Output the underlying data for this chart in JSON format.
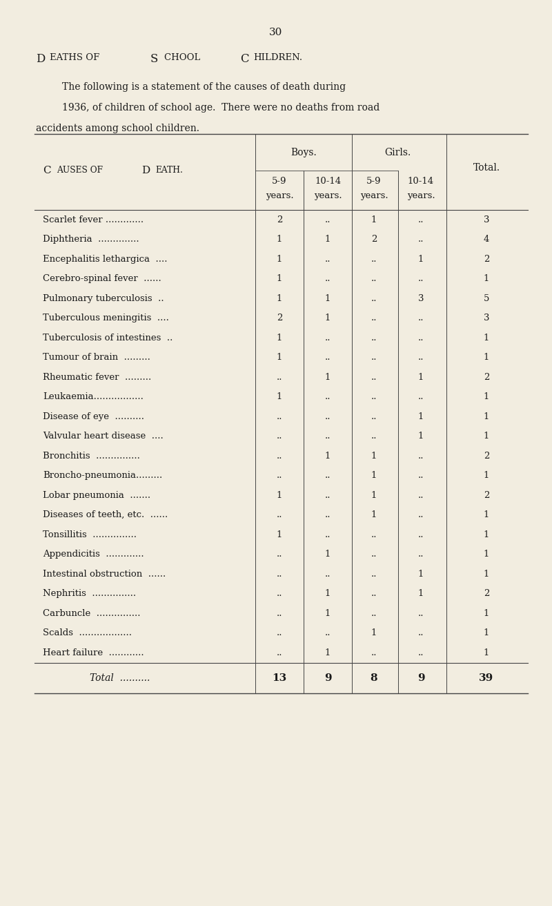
{
  "page_number": "30",
  "title_parts": [
    {
      "text": "D",
      "small_cap": false
    },
    {
      "text": "EATHS OF ",
      "small_cap": true
    },
    {
      "text": "S",
      "small_cap": false
    },
    {
      "text": "CHOOL ",
      "small_cap": true
    },
    {
      "text": "C",
      "small_cap": false
    },
    {
      "text": "HILDREN",
      "small_cap": true
    }
  ],
  "title_display": "Deaths of School Children.",
  "intro_line1": "The following is a statement of the causes of death during",
  "intro_line2": "1936, of children of school age.  There were no deaths from road",
  "intro_line3": "accidents among school children.",
  "col0_header": "Causes of Death.",
  "header_boys": "Boys.",
  "header_girls": "Girls.",
  "header_total": "Total.",
  "subheaders": [
    "5-9",
    "10-14",
    "5-9",
    "10-14"
  ],
  "subheaders2": [
    "years.",
    "years.",
    "years.",
    "years."
  ],
  "rows": [
    {
      "cause": "Scarlet fever .............",
      "b59": "2",
      "b1014": "..",
      "g59": "1",
      "g1014": "..",
      "total": "3"
    },
    {
      "cause": "Diphtheria  ..............",
      "b59": "1",
      "b1014": "1",
      "g59": "2",
      "g1014": "..",
      "total": "4"
    },
    {
      "cause": "Encephalitis lethargica  ....",
      "b59": "1",
      "b1014": "..",
      "g59": "..",
      "g1014": "1",
      "total": "2"
    },
    {
      "cause": "Cerebro-spinal fever  ......",
      "b59": "1",
      "b1014": "..",
      "g59": "..",
      "g1014": "..",
      "total": "1"
    },
    {
      "cause": "Pulmonary tuberculosis  ..",
      "b59": "1",
      "b1014": "1",
      "g59": "..",
      "g1014": "3",
      "total": "5"
    },
    {
      "cause": "Tuberculous meningitis  ....",
      "b59": "2",
      "b1014": "1",
      "g59": "..",
      "g1014": "..",
      "total": "3"
    },
    {
      "cause": "Tuberculosis of intestines  ..",
      "b59": "1",
      "b1014": "..",
      "g59": "..",
      "g1014": "..",
      "total": "1"
    },
    {
      "cause": "Tumour of brain  .........",
      "b59": "1",
      "b1014": "..",
      "g59": "..",
      "g1014": "..",
      "total": "1"
    },
    {
      "cause": "Rheumatic fever  .........",
      "b59": "..",
      "b1014": "1",
      "g59": "..",
      "g1014": "1",
      "total": "2"
    },
    {
      "cause": "Leukaemia.................",
      "b59": "1",
      "b1014": "..",
      "g59": "..",
      "g1014": "..",
      "total": "1"
    },
    {
      "cause": "Disease of eye  ..........",
      "b59": "..",
      "b1014": "..",
      "g59": "..",
      "g1014": "1",
      "total": "1"
    },
    {
      "cause": "Valvular heart disease  ....",
      "b59": "..",
      "b1014": "..",
      "g59": "..",
      "g1014": "1",
      "total": "1"
    },
    {
      "cause": "Bronchitis  ...............",
      "b59": "..",
      "b1014": "1",
      "g59": "1",
      "g1014": "..",
      "total": "2"
    },
    {
      "cause": "Broncho-pneumonia.........",
      "b59": "..",
      "b1014": "..",
      "g59": "1",
      "g1014": "..",
      "total": "1"
    },
    {
      "cause": "Lobar pneumonia  .......",
      "b59": "1",
      "b1014": "..",
      "g59": "1",
      "g1014": "..",
      "total": "2"
    },
    {
      "cause": "Diseases of teeth, etc.  ......",
      "b59": "..",
      "b1014": "..",
      "g59": "1",
      "g1014": "..",
      "total": "1"
    },
    {
      "cause": "Tonsillitis  ...............",
      "b59": "1",
      "b1014": "..",
      "g59": "..",
      "g1014": "..",
      "total": "1"
    },
    {
      "cause": "Appendicitis  .............",
      "b59": "..",
      "b1014": "1",
      "g59": "..",
      "g1014": "..",
      "total": "1"
    },
    {
      "cause": "Intestinal obstruction  ......",
      "b59": "..",
      "b1014": "..",
      "g59": "..",
      "g1014": "1",
      "total": "1"
    },
    {
      "cause": "Nephritis  ...............",
      "b59": "..",
      "b1014": "1",
      "g59": "..",
      "g1014": "1",
      "total": "2"
    },
    {
      "cause": "Carbuncle  ...............",
      "b59": "..",
      "b1014": "1",
      "g59": "..",
      "g1014": "..",
      "total": "1"
    },
    {
      "cause": "Scalds  ..................",
      "b59": "..",
      "b1014": "..",
      "g59": "1",
      "g1014": "..",
      "total": "1"
    },
    {
      "cause": "Heart failure  ............",
      "b59": "..",
      "b1014": "1",
      "g59": "..",
      "g1014": "..",
      "total": "1"
    }
  ],
  "total_cause": "Total  ..........",
  "total_b59": "13",
  "total_b1014": "9",
  "total_g59": "8",
  "total_g1014": "9",
  "total_total": "39",
  "bg_color": "#f2ede0",
  "text_color": "#1a1a1a",
  "line_color": "#444444"
}
